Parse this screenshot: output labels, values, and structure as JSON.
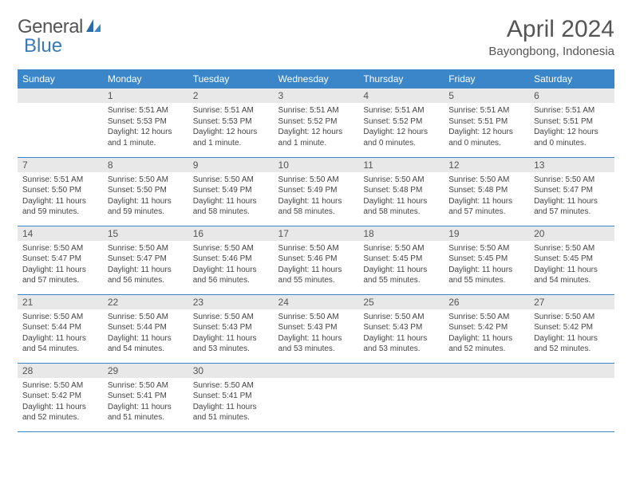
{
  "logo": {
    "text1": "General",
    "text2": "Blue"
  },
  "title": "April 2024",
  "location": "Bayongbong, Indonesia",
  "colors": {
    "header_bg": "#3a86c8",
    "header_fg": "#ffffff",
    "daynum_bg": "#e8e8e8",
    "rule": "#3a86c8"
  },
  "weekdays": [
    "Sunday",
    "Monday",
    "Tuesday",
    "Wednesday",
    "Thursday",
    "Friday",
    "Saturday"
  ],
  "weeks": [
    [
      null,
      {
        "n": "1",
        "sr": "Sunrise: 5:51 AM",
        "ss": "Sunset: 5:53 PM",
        "dl": "Daylight: 12 hours and 1 minute."
      },
      {
        "n": "2",
        "sr": "Sunrise: 5:51 AM",
        "ss": "Sunset: 5:53 PM",
        "dl": "Daylight: 12 hours and 1 minute."
      },
      {
        "n": "3",
        "sr": "Sunrise: 5:51 AM",
        "ss": "Sunset: 5:52 PM",
        "dl": "Daylight: 12 hours and 1 minute."
      },
      {
        "n": "4",
        "sr": "Sunrise: 5:51 AM",
        "ss": "Sunset: 5:52 PM",
        "dl": "Daylight: 12 hours and 0 minutes."
      },
      {
        "n": "5",
        "sr": "Sunrise: 5:51 AM",
        "ss": "Sunset: 5:51 PM",
        "dl": "Daylight: 12 hours and 0 minutes."
      },
      {
        "n": "6",
        "sr": "Sunrise: 5:51 AM",
        "ss": "Sunset: 5:51 PM",
        "dl": "Daylight: 12 hours and 0 minutes."
      }
    ],
    [
      {
        "n": "7",
        "sr": "Sunrise: 5:51 AM",
        "ss": "Sunset: 5:50 PM",
        "dl": "Daylight: 11 hours and 59 minutes."
      },
      {
        "n": "8",
        "sr": "Sunrise: 5:50 AM",
        "ss": "Sunset: 5:50 PM",
        "dl": "Daylight: 11 hours and 59 minutes."
      },
      {
        "n": "9",
        "sr": "Sunrise: 5:50 AM",
        "ss": "Sunset: 5:49 PM",
        "dl": "Daylight: 11 hours and 58 minutes."
      },
      {
        "n": "10",
        "sr": "Sunrise: 5:50 AM",
        "ss": "Sunset: 5:49 PM",
        "dl": "Daylight: 11 hours and 58 minutes."
      },
      {
        "n": "11",
        "sr": "Sunrise: 5:50 AM",
        "ss": "Sunset: 5:48 PM",
        "dl": "Daylight: 11 hours and 58 minutes."
      },
      {
        "n": "12",
        "sr": "Sunrise: 5:50 AM",
        "ss": "Sunset: 5:48 PM",
        "dl": "Daylight: 11 hours and 57 minutes."
      },
      {
        "n": "13",
        "sr": "Sunrise: 5:50 AM",
        "ss": "Sunset: 5:47 PM",
        "dl": "Daylight: 11 hours and 57 minutes."
      }
    ],
    [
      {
        "n": "14",
        "sr": "Sunrise: 5:50 AM",
        "ss": "Sunset: 5:47 PM",
        "dl": "Daylight: 11 hours and 57 minutes."
      },
      {
        "n": "15",
        "sr": "Sunrise: 5:50 AM",
        "ss": "Sunset: 5:47 PM",
        "dl": "Daylight: 11 hours and 56 minutes."
      },
      {
        "n": "16",
        "sr": "Sunrise: 5:50 AM",
        "ss": "Sunset: 5:46 PM",
        "dl": "Daylight: 11 hours and 56 minutes."
      },
      {
        "n": "17",
        "sr": "Sunrise: 5:50 AM",
        "ss": "Sunset: 5:46 PM",
        "dl": "Daylight: 11 hours and 55 minutes."
      },
      {
        "n": "18",
        "sr": "Sunrise: 5:50 AM",
        "ss": "Sunset: 5:45 PM",
        "dl": "Daylight: 11 hours and 55 minutes."
      },
      {
        "n": "19",
        "sr": "Sunrise: 5:50 AM",
        "ss": "Sunset: 5:45 PM",
        "dl": "Daylight: 11 hours and 55 minutes."
      },
      {
        "n": "20",
        "sr": "Sunrise: 5:50 AM",
        "ss": "Sunset: 5:45 PM",
        "dl": "Daylight: 11 hours and 54 minutes."
      }
    ],
    [
      {
        "n": "21",
        "sr": "Sunrise: 5:50 AM",
        "ss": "Sunset: 5:44 PM",
        "dl": "Daylight: 11 hours and 54 minutes."
      },
      {
        "n": "22",
        "sr": "Sunrise: 5:50 AM",
        "ss": "Sunset: 5:44 PM",
        "dl": "Daylight: 11 hours and 54 minutes."
      },
      {
        "n": "23",
        "sr": "Sunrise: 5:50 AM",
        "ss": "Sunset: 5:43 PM",
        "dl": "Daylight: 11 hours and 53 minutes."
      },
      {
        "n": "24",
        "sr": "Sunrise: 5:50 AM",
        "ss": "Sunset: 5:43 PM",
        "dl": "Daylight: 11 hours and 53 minutes."
      },
      {
        "n": "25",
        "sr": "Sunrise: 5:50 AM",
        "ss": "Sunset: 5:43 PM",
        "dl": "Daylight: 11 hours and 53 minutes."
      },
      {
        "n": "26",
        "sr": "Sunrise: 5:50 AM",
        "ss": "Sunset: 5:42 PM",
        "dl": "Daylight: 11 hours and 52 minutes."
      },
      {
        "n": "27",
        "sr": "Sunrise: 5:50 AM",
        "ss": "Sunset: 5:42 PM",
        "dl": "Daylight: 11 hours and 52 minutes."
      }
    ],
    [
      {
        "n": "28",
        "sr": "Sunrise: 5:50 AM",
        "ss": "Sunset: 5:42 PM",
        "dl": "Daylight: 11 hours and 52 minutes."
      },
      {
        "n": "29",
        "sr": "Sunrise: 5:50 AM",
        "ss": "Sunset: 5:41 PM",
        "dl": "Daylight: 11 hours and 51 minutes."
      },
      {
        "n": "30",
        "sr": "Sunrise: 5:50 AM",
        "ss": "Sunset: 5:41 PM",
        "dl": "Daylight: 11 hours and 51 minutes."
      },
      null,
      null,
      null,
      null
    ]
  ]
}
